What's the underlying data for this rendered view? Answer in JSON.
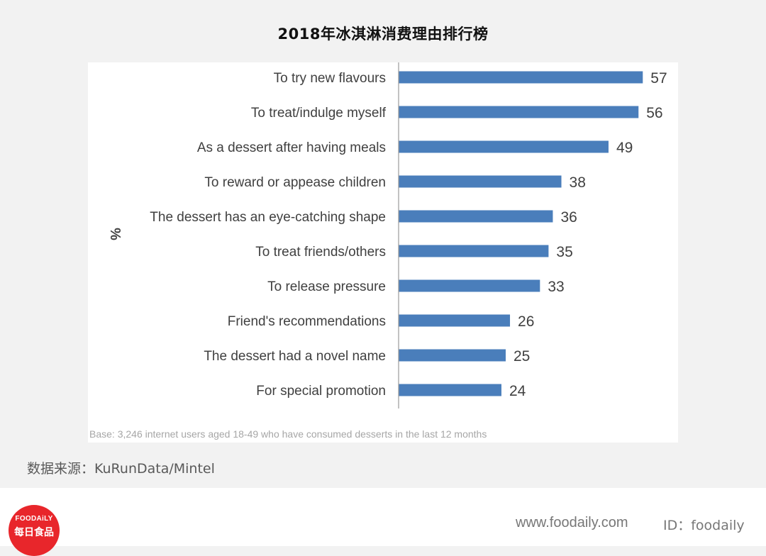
{
  "title": "2018年冰淇淋消费理由排行榜",
  "chart_data": {
    "type": "bar",
    "orientation": "horizontal",
    "categories": [
      "To try new flavours",
      "To treat/indulge myself",
      "As a dessert after having meals",
      "To reward or appease children",
      "The dessert has an eye-catching shape",
      "To treat friends/others",
      "To release pressure",
      "Friend's recommendations",
      "The dessert had a novel name",
      "For special promotion"
    ],
    "values": [
      57,
      56,
      49,
      38,
      36,
      35,
      33,
      26,
      25,
      24
    ],
    "ylabel": "%",
    "bar_color": "#4a7ebb",
    "grid": false,
    "legend": "none"
  },
  "base_note": "Base: 3,246 internet users aged 18-49 who have consumed desserts in the last 12 months",
  "source": "数据来源：KuRunData/Mintel",
  "footer": {
    "logo_en": "FOODAiLY",
    "logo_cn": "每日食品",
    "website": "www.foodaily.com",
    "id_text": "ID：foodaily"
  },
  "colors": {
    "background": "#f2f2f2",
    "panel": "#ffffff",
    "logo": "#e8262b"
  }
}
